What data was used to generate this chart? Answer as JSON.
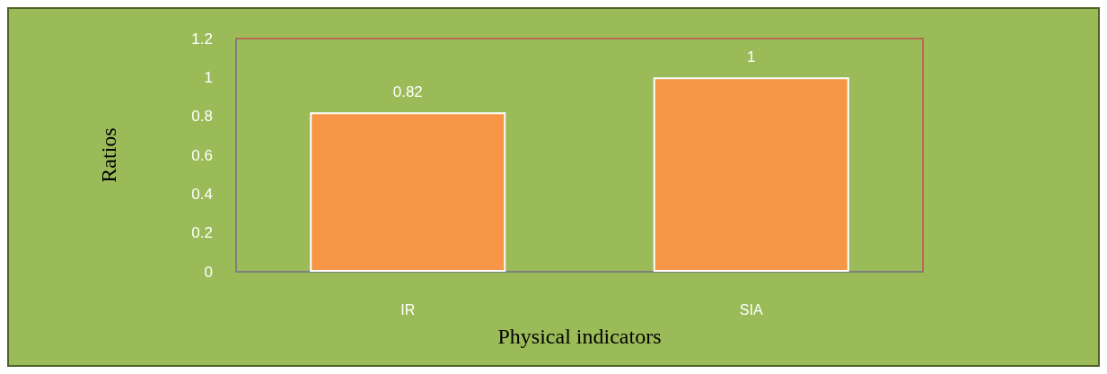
{
  "chart_data": {
    "type": "bar",
    "xlabel": "Physical indicators",
    "ylabel": "Ratios",
    "categories": [
      "IR",
      "SIA"
    ],
    "values": [
      0.82,
      1
    ],
    "color": "#f79646",
    "ylim": [
      0,
      1.2
    ],
    "yticks": [
      0,
      0.2,
      0.4,
      0.6,
      0.8,
      1,
      1.2
    ],
    "grid": false,
    "data_labels": true
  }
}
